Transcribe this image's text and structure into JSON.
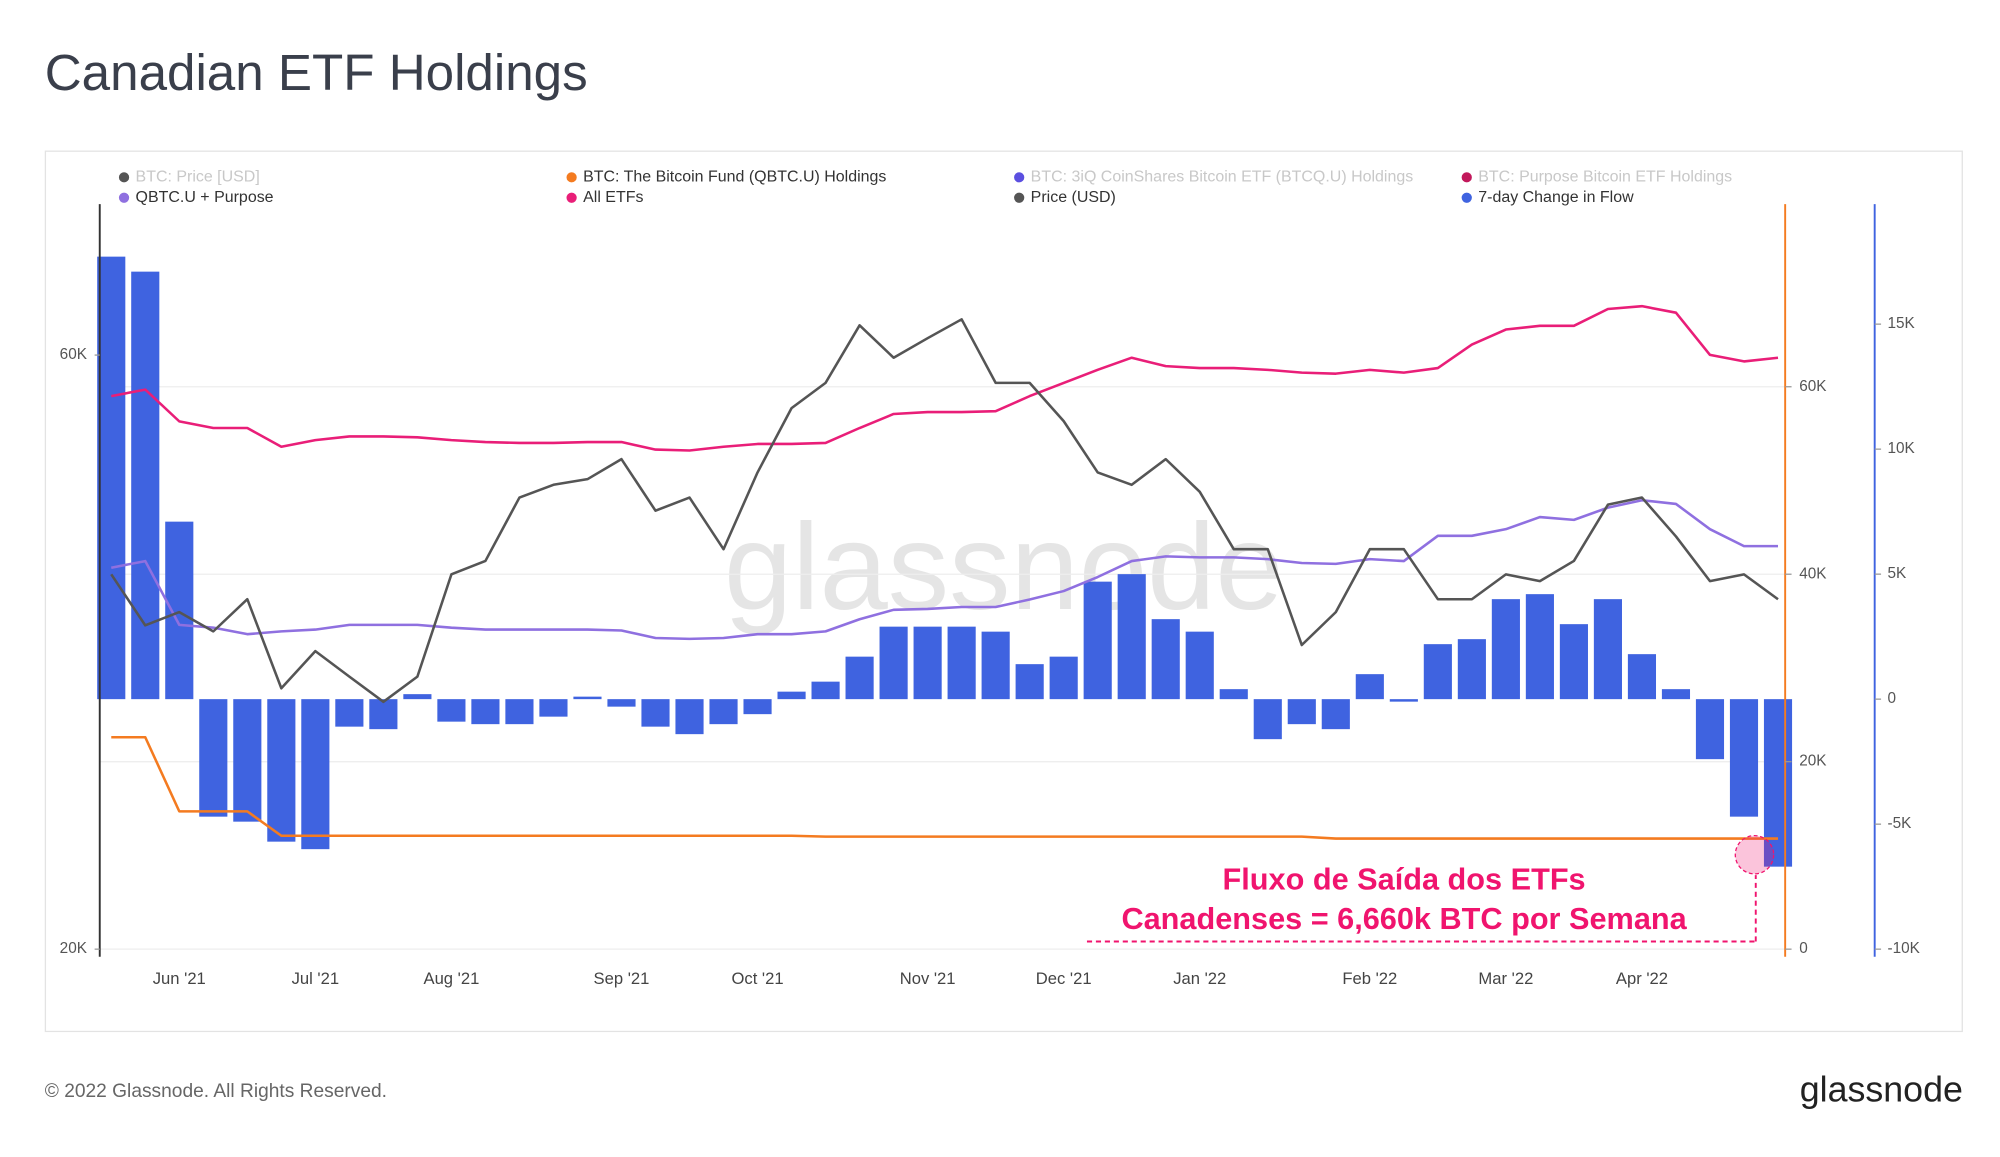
{
  "chart_data": {
    "type": "line",
    "title": "Canadian ETF Holdings",
    "footer": "© 2022 Glassnode. All Rights Reserved.",
    "logo": "glassnode",
    "watermark": "glassnode",
    "annotation": [
      "Fluxo de Saída dos ETFs",
      "Canadenses = 6,660k BTC por Semana"
    ],
    "categories": [
      null,
      null,
      "Jun '21",
      null,
      null,
      null,
      "Jul '21",
      null,
      null,
      null,
      "Aug '21",
      null,
      null,
      null,
      null,
      "Sep '21",
      null,
      null,
      null,
      "Oct '21",
      null,
      null,
      null,
      null,
      "Nov '21",
      null,
      null,
      null,
      "Dec '21",
      null,
      null,
      null,
      "Jan '22",
      null,
      null,
      null,
      null,
      "Feb '22",
      null,
      null,
      null,
      "Mar '22",
      null,
      null,
      null,
      "Apr '22",
      null,
      null,
      null,
      null
    ],
    "ylog": true,
    "ylim": [
      20000,
      73900
    ],
    "yticks": [
      {
        "value": 20000,
        "label": "20K"
      },
      {
        "value": 60000,
        "label": "60K"
      }
    ],
    "y2lim": [
      0,
      75400
    ],
    "y2ticks": [
      0,
      {
        "value": 20000,
        "label": "20K"
      },
      {
        "value": 40000,
        "label": "40K"
      },
      {
        "value": 60000,
        "label": "60K"
      }
    ],
    "y3lim": [
      -10000,
      18270
    ],
    "y3ticks": [
      {
        "value": -10000,
        "label": "-10K"
      },
      {
        "value": -5000,
        "label": "-5K"
      },
      0,
      {
        "value": 5000,
        "label": "5K"
      },
      {
        "value": 10000,
        "label": "10K"
      },
      {
        "value": 15000,
        "label": "15K"
      }
    ],
    "grid": true,
    "series": [
      {
        "name": "BTC: Price [USD]",
        "color": "#555555",
        "hidden": true
      },
      {
        "name": "BTC: The Bitcoin Fund (QBTC.U) Holdings",
        "color": "#f47b20",
        "type": "line",
        "axis": "y2",
        "values": [
          22600,
          22600,
          14700,
          14700,
          14700,
          12100,
          12100,
          12100,
          12100,
          12100,
          12100,
          12100,
          12100,
          12100,
          12100,
          12100,
          12100,
          12100,
          12100,
          12100,
          12100,
          12000,
          12000,
          12000,
          12000,
          12000,
          12000,
          12000,
          12000,
          12000,
          12000,
          12000,
          12000,
          12000,
          12000,
          12000,
          11800,
          11800,
          11800,
          11800,
          11800,
          11800,
          11800,
          11800,
          11800,
          11800,
          11800,
          11800,
          11800,
          11800
        ]
      },
      {
        "name": "BTC: 3iQ CoinShares Bitcoin ETF (BTCQ.U) Holdings",
        "color": "#5b4fe0",
        "hidden": true
      },
      {
        "name": "BTC: Purpose Bitcoin ETF Holdings",
        "color": "#c2185b",
        "hidden": true
      },
      {
        "name": "QBTC.U + Purpose",
        "color": "#8f70e0",
        "type": "line",
        "axis": "y2",
        "values": [
          40700,
          41400,
          34600,
          34300,
          33600,
          33900,
          34100,
          34600,
          34600,
          34600,
          34300,
          34100,
          34100,
          34100,
          34100,
          34000,
          33200,
          33100,
          33200,
          33600,
          33600,
          33900,
          35200,
          36200,
          36300,
          36500,
          36500,
          37300,
          38200,
          39700,
          41400,
          41900,
          41800,
          41800,
          41600,
          41200,
          41100,
          41600,
          41400,
          44100,
          44100,
          44800,
          46100,
          45800,
          47100,
          47900,
          47500,
          44800,
          43000,
          43000
        ]
      },
      {
        "name": "All ETFs",
        "color": "#e91e78",
        "type": "line",
        "axis": "y2",
        "values": [
          59000,
          59700,
          56300,
          55600,
          55600,
          53600,
          54300,
          54700,
          54700,
          54600,
          54300,
          54100,
          54000,
          54000,
          54100,
          54100,
          53300,
          53200,
          53600,
          53900,
          53900,
          54000,
          55600,
          57100,
          57300,
          57300,
          57400,
          59000,
          60400,
          61800,
          63100,
          62200,
          62000,
          62000,
          61800,
          61500,
          61400,
          61800,
          61500,
          62000,
          64500,
          66100,
          66500,
          66500,
          68300,
          68600,
          67900,
          63400,
          62700,
          63100
        ]
      },
      {
        "name": "Price (USD)",
        "color": "#555555",
        "type": "line",
        "axis": "y",
        "values": [
          40000,
          36400,
          37300,
          36000,
          38200,
          32400,
          34700,
          33100,
          31600,
          33100,
          40000,
          41000,
          46100,
          47200,
          47700,
          49500,
          45000,
          46100,
          41900,
          48300,
          54400,
          57000,
          63400,
          59700,
          61900,
          64100,
          57000,
          57000,
          53100,
          48300,
          47200,
          49500,
          46600,
          41900,
          41900,
          35100,
          37300,
          41900,
          41900,
          38200,
          38200,
          40000,
          39500,
          41000,
          45500,
          46100,
          42900,
          39500,
          40000,
          38200
        ]
      },
      {
        "name": "7-day Change in Flow",
        "color": "#3f63e0",
        "type": "bar",
        "axis": "y3",
        "values": [
          17700,
          17100,
          7100,
          -4700,
          -4900,
          -5700,
          -6000,
          -1100,
          -1200,
          200,
          -900,
          -1000,
          -1000,
          -700,
          100,
          -300,
          -1100,
          -1400,
          -1000,
          -600,
          300,
          700,
          1700,
          2900,
          2900,
          2900,
          2700,
          1400,
          1700,
          4700,
          5000,
          3200,
          2700,
          400,
          -1600,
          -1000,
          -1200,
          1000,
          -100,
          2200,
          2400,
          4000,
          4200,
          3000,
          4000,
          1800,
          400,
          -2400,
          -4700,
          -6700
        ]
      }
    ]
  }
}
